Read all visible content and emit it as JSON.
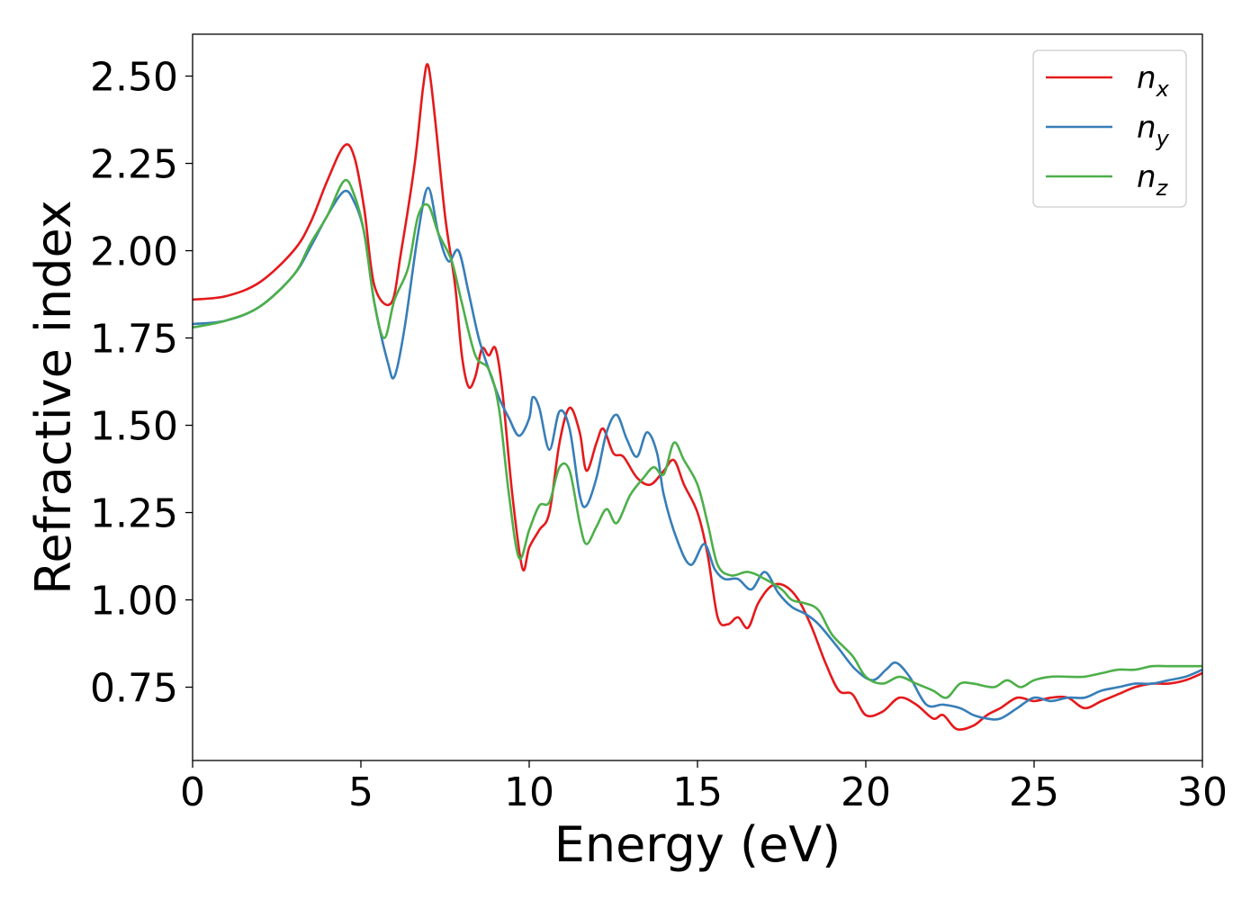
{
  "chart_data": {
    "type": "line",
    "title": "",
    "xlabel": "Energy (eV)",
    "ylabel": "Refractive index",
    "xlim": [
      0,
      30
    ],
    "ylim": [
      0.54,
      2.62
    ],
    "xticks": [
      0,
      5,
      10,
      15,
      20,
      25,
      30
    ],
    "xtick_labels": [
      "0",
      "5",
      "10",
      "15",
      "20",
      "25",
      "30"
    ],
    "yticks": [
      0.75,
      1.0,
      1.25,
      1.5,
      1.75,
      2.0,
      2.25,
      2.5
    ],
    "ytick_labels": [
      "0.75",
      "1.00",
      "1.25",
      "1.50",
      "1.75",
      "2.00",
      "2.25",
      "2.50"
    ],
    "grid": false,
    "legend_position": "top-right",
    "series": [
      {
        "name": "n",
        "subscript": "x",
        "color": "#e41a1c",
        "points": [
          [
            0,
            1.86
          ],
          [
            1,
            1.87
          ],
          [
            2,
            1.91
          ],
          [
            3,
            2.0
          ],
          [
            3.5,
            2.08
          ],
          [
            4,
            2.2
          ],
          [
            4.5,
            2.3
          ],
          [
            4.8,
            2.27
          ],
          [
            5.1,
            2.12
          ],
          [
            5.4,
            1.9
          ],
          [
            5.9,
            1.85
          ],
          [
            6.2,
            2.0
          ],
          [
            6.6,
            2.25
          ],
          [
            6.85,
            2.47
          ],
          [
            7.0,
            2.53
          ],
          [
            7.2,
            2.38
          ],
          [
            7.5,
            2.1
          ],
          [
            7.8,
            1.9
          ],
          [
            8.0,
            1.7
          ],
          [
            8.2,
            1.61
          ],
          [
            8.4,
            1.64
          ],
          [
            8.6,
            1.72
          ],
          [
            8.8,
            1.7
          ],
          [
            9.0,
            1.72
          ],
          [
            9.2,
            1.6
          ],
          [
            9.5,
            1.3
          ],
          [
            9.8,
            1.09
          ],
          [
            10.0,
            1.15
          ],
          [
            10.3,
            1.2
          ],
          [
            10.6,
            1.25
          ],
          [
            10.9,
            1.45
          ],
          [
            11.2,
            1.55
          ],
          [
            11.5,
            1.48
          ],
          [
            11.7,
            1.37
          ],
          [
            12.0,
            1.45
          ],
          [
            12.2,
            1.49
          ],
          [
            12.5,
            1.42
          ],
          [
            12.8,
            1.41
          ],
          [
            13.2,
            1.35
          ],
          [
            13.6,
            1.33
          ],
          [
            14.0,
            1.37
          ],
          [
            14.3,
            1.4
          ],
          [
            14.6,
            1.33
          ],
          [
            15.0,
            1.25
          ],
          [
            15.3,
            1.13
          ],
          [
            15.6,
            0.95
          ],
          [
            15.9,
            0.93
          ],
          [
            16.2,
            0.95
          ],
          [
            16.5,
            0.92
          ],
          [
            16.8,
            0.99
          ],
          [
            17.2,
            1.04
          ],
          [
            17.6,
            1.04
          ],
          [
            18.0,
            1.0
          ],
          [
            18.4,
            0.92
          ],
          [
            18.8,
            0.82
          ],
          [
            19.2,
            0.74
          ],
          [
            19.6,
            0.73
          ],
          [
            20.0,
            0.67
          ],
          [
            20.5,
            0.68
          ],
          [
            21.0,
            0.72
          ],
          [
            21.5,
            0.7
          ],
          [
            22.0,
            0.66
          ],
          [
            22.3,
            0.67
          ],
          [
            22.7,
            0.63
          ],
          [
            23.2,
            0.64
          ],
          [
            23.6,
            0.67
          ],
          [
            24.0,
            0.69
          ],
          [
            24.5,
            0.72
          ],
          [
            25.0,
            0.71
          ],
          [
            25.5,
            0.72
          ],
          [
            26.0,
            0.72
          ],
          [
            26.5,
            0.69
          ],
          [
            27.0,
            0.71
          ],
          [
            27.5,
            0.73
          ],
          [
            28.0,
            0.75
          ],
          [
            28.5,
            0.76
          ],
          [
            29.0,
            0.76
          ],
          [
            29.5,
            0.77
          ],
          [
            30.0,
            0.79
          ]
        ]
      },
      {
        "name": "n",
        "subscript": "y",
        "color": "#377eb8",
        "points": [
          [
            0,
            1.79
          ],
          [
            1,
            1.8
          ],
          [
            2,
            1.84
          ],
          [
            3,
            1.93
          ],
          [
            3.5,
            2.01
          ],
          [
            4,
            2.1
          ],
          [
            4.5,
            2.17
          ],
          [
            4.8,
            2.14
          ],
          [
            5.1,
            2.05
          ],
          [
            5.4,
            1.85
          ],
          [
            5.8,
            1.68
          ],
          [
            6.0,
            1.64
          ],
          [
            6.3,
            1.78
          ],
          [
            6.7,
            2.05
          ],
          [
            7.0,
            2.18
          ],
          [
            7.3,
            2.05
          ],
          [
            7.6,
            1.97
          ],
          [
            7.9,
            2.0
          ],
          [
            8.2,
            1.88
          ],
          [
            8.5,
            1.75
          ],
          [
            8.8,
            1.66
          ],
          [
            9.1,
            1.58
          ],
          [
            9.4,
            1.52
          ],
          [
            9.7,
            1.47
          ],
          [
            10.0,
            1.52
          ],
          [
            10.1,
            1.58
          ],
          [
            10.3,
            1.55
          ],
          [
            10.6,
            1.43
          ],
          [
            10.9,
            1.54
          ],
          [
            11.2,
            1.49
          ],
          [
            11.5,
            1.3
          ],
          [
            11.7,
            1.27
          ],
          [
            12.0,
            1.35
          ],
          [
            12.3,
            1.48
          ],
          [
            12.6,
            1.53
          ],
          [
            12.9,
            1.46
          ],
          [
            13.2,
            1.41
          ],
          [
            13.5,
            1.48
          ],
          [
            13.8,
            1.42
          ],
          [
            14.0,
            1.3
          ],
          [
            14.4,
            1.17
          ],
          [
            14.8,
            1.1
          ],
          [
            15.2,
            1.16
          ],
          [
            15.5,
            1.09
          ],
          [
            15.8,
            1.06
          ],
          [
            16.2,
            1.06
          ],
          [
            16.6,
            1.03
          ],
          [
            17.0,
            1.08
          ],
          [
            17.4,
            1.02
          ],
          [
            17.8,
            0.98
          ],
          [
            18.2,
            0.96
          ],
          [
            18.6,
            0.93
          ],
          [
            19.2,
            0.86
          ],
          [
            19.7,
            0.8
          ],
          [
            20.2,
            0.77
          ],
          [
            20.6,
            0.8
          ],
          [
            20.9,
            0.82
          ],
          [
            21.3,
            0.78
          ],
          [
            21.8,
            0.7
          ],
          [
            22.3,
            0.7
          ],
          [
            22.8,
            0.69
          ],
          [
            23.2,
            0.67
          ],
          [
            23.6,
            0.66
          ],
          [
            24.0,
            0.66
          ],
          [
            24.5,
            0.69
          ],
          [
            25.0,
            0.72
          ],
          [
            25.5,
            0.71
          ],
          [
            26.0,
            0.72
          ],
          [
            26.5,
            0.72
          ],
          [
            27.0,
            0.74
          ],
          [
            27.5,
            0.75
          ],
          [
            28.0,
            0.76
          ],
          [
            28.5,
            0.76
          ],
          [
            29.0,
            0.77
          ],
          [
            29.5,
            0.78
          ],
          [
            30.0,
            0.8
          ]
        ]
      },
      {
        "name": "n",
        "subscript": "z",
        "color": "#4daf4a",
        "points": [
          [
            0,
            1.78
          ],
          [
            1,
            1.8
          ],
          [
            2,
            1.84
          ],
          [
            3,
            1.93
          ],
          [
            3.5,
            2.02
          ],
          [
            4,
            2.1
          ],
          [
            4.5,
            2.2
          ],
          [
            4.8,
            2.16
          ],
          [
            5.1,
            2.05
          ],
          [
            5.4,
            1.85
          ],
          [
            5.7,
            1.75
          ],
          [
            6.0,
            1.86
          ],
          [
            6.4,
            1.95
          ],
          [
            6.7,
            2.1
          ],
          [
            7.0,
            2.13
          ],
          [
            7.3,
            2.05
          ],
          [
            7.7,
            1.97
          ],
          [
            8.0,
            1.85
          ],
          [
            8.4,
            1.7
          ],
          [
            8.8,
            1.66
          ],
          [
            9.1,
            1.55
          ],
          [
            9.4,
            1.3
          ],
          [
            9.7,
            1.12
          ],
          [
            10.0,
            1.2
          ],
          [
            10.3,
            1.27
          ],
          [
            10.6,
            1.28
          ],
          [
            10.9,
            1.38
          ],
          [
            11.2,
            1.37
          ],
          [
            11.5,
            1.22
          ],
          [
            11.7,
            1.16
          ],
          [
            12.0,
            1.21
          ],
          [
            12.3,
            1.26
          ],
          [
            12.6,
            1.22
          ],
          [
            13.0,
            1.3
          ],
          [
            13.4,
            1.35
          ],
          [
            13.7,
            1.38
          ],
          [
            14.0,
            1.36
          ],
          [
            14.3,
            1.45
          ],
          [
            14.6,
            1.4
          ],
          [
            15.0,
            1.33
          ],
          [
            15.3,
            1.22
          ],
          [
            15.6,
            1.1
          ],
          [
            16.0,
            1.07
          ],
          [
            16.5,
            1.08
          ],
          [
            17.0,
            1.06
          ],
          [
            17.5,
            1.03
          ],
          [
            17.8,
            1.0
          ],
          [
            18.2,
            0.99
          ],
          [
            18.6,
            0.97
          ],
          [
            19.0,
            0.9
          ],
          [
            19.6,
            0.84
          ],
          [
            20.0,
            0.78
          ],
          [
            20.5,
            0.76
          ],
          [
            21.0,
            0.78
          ],
          [
            21.5,
            0.76
          ],
          [
            22.0,
            0.74
          ],
          [
            22.4,
            0.72
          ],
          [
            22.8,
            0.76
          ],
          [
            23.2,
            0.76
          ],
          [
            23.8,
            0.75
          ],
          [
            24.2,
            0.77
          ],
          [
            24.6,
            0.75
          ],
          [
            25.0,
            0.77
          ],
          [
            25.5,
            0.78
          ],
          [
            26.0,
            0.78
          ],
          [
            26.5,
            0.78
          ],
          [
            27.0,
            0.79
          ],
          [
            27.5,
            0.8
          ],
          [
            28.0,
            0.8
          ],
          [
            28.5,
            0.81
          ],
          [
            29.0,
            0.81
          ],
          [
            29.5,
            0.81
          ],
          [
            30.0,
            0.81
          ]
        ]
      }
    ]
  }
}
